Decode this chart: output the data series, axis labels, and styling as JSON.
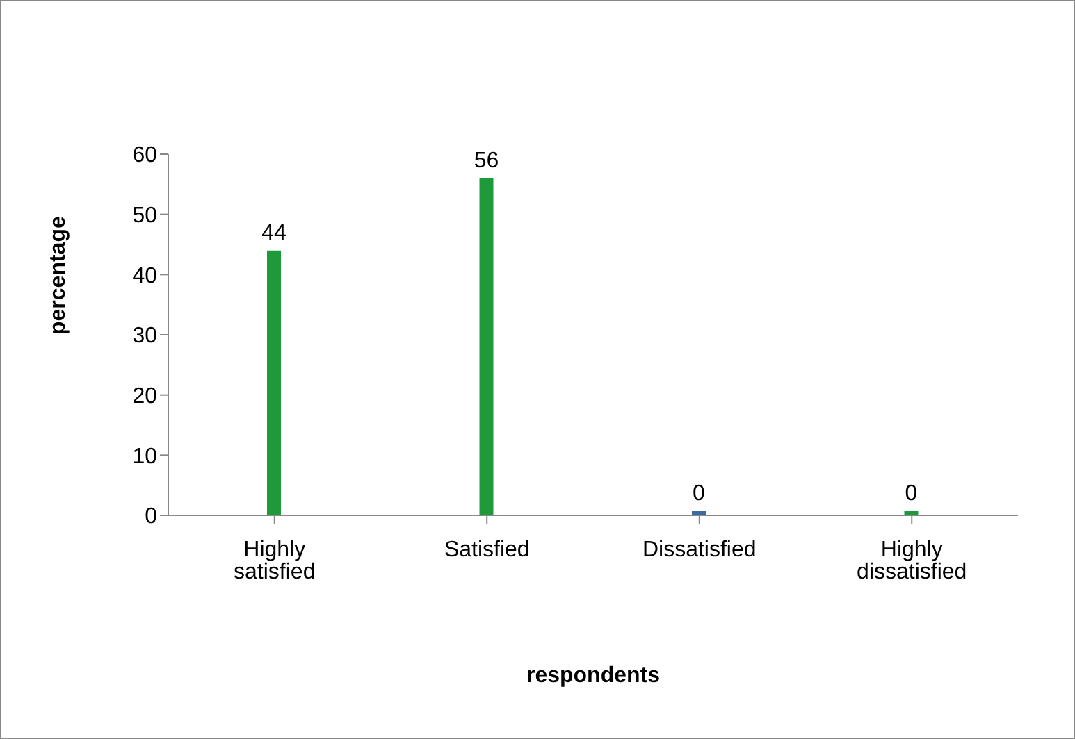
{
  "chart_data": {
    "type": "bar",
    "xlabel": "respondents",
    "ylabel": "percentage",
    "categories": [
      "Highly satisfied",
      "Satisfied",
      "Dissatisfied",
      "Highly dissatisfied"
    ],
    "values": [
      44,
      56,
      0,
      0
    ],
    "colors": [
      "#1f9a3a",
      "#1f9a3a",
      "#3b6aa0",
      "#1f9a3a"
    ],
    "ylim": [
      0,
      60
    ],
    "yticks": [
      0,
      10,
      20,
      30,
      40,
      50,
      60
    ],
    "grid": false,
    "legend": false,
    "data_labels": true
  }
}
